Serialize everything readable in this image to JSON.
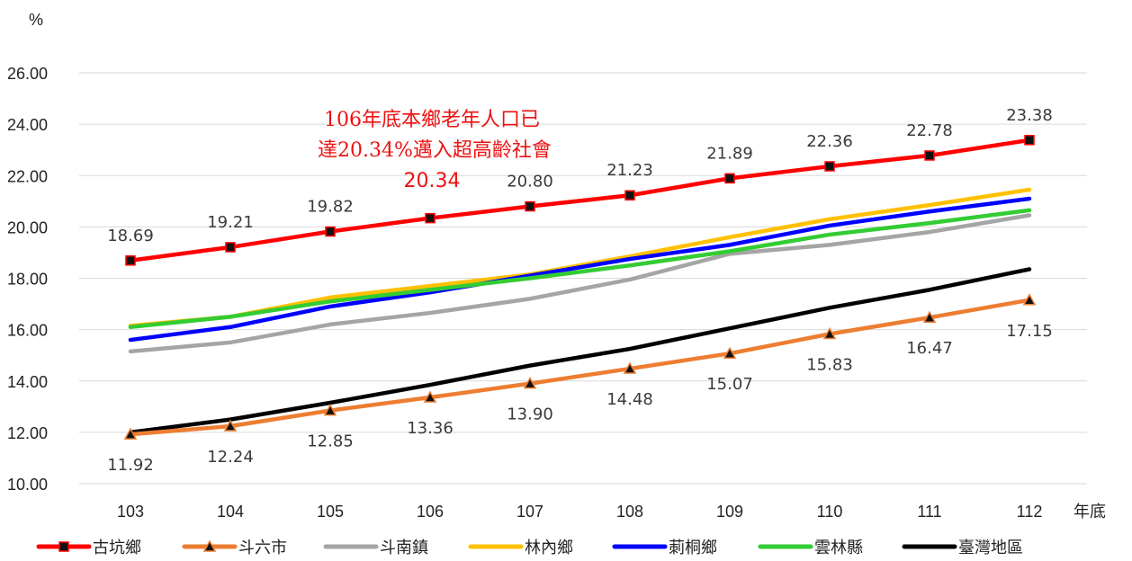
{
  "chart_data": {
    "type": "line",
    "y_unit": "%",
    "x_unit": "年底",
    "ylim": [
      10,
      26
    ],
    "y_ticks": [
      "10.00",
      "12.00",
      "14.00",
      "16.00",
      "18.00",
      "20.00",
      "22.00",
      "24.00",
      "26.00"
    ],
    "x": [
      "103",
      "104",
      "105",
      "106",
      "107",
      "108",
      "109",
      "110",
      "111",
      "112"
    ],
    "grid": true,
    "legend_position": "bottom",
    "annotation": {
      "lines": [
        "106年底本鄉老年人口已",
        "達20.34%邁入超高齡社會"
      ],
      "value": "20.34"
    },
    "series": [
      {
        "name": "古坑鄉",
        "color": "#ff0000",
        "marker": "square",
        "values": [
          18.69,
          19.21,
          19.82,
          20.34,
          20.8,
          21.23,
          21.89,
          22.36,
          22.78,
          23.38
        ],
        "labels": [
          "18.69",
          "19.21",
          "19.82",
          "",
          "20.80",
          "21.23",
          "21.89",
          "22.36",
          "22.78",
          "23.38"
        ]
      },
      {
        "name": "斗六市",
        "color": "#ed7d31",
        "marker": "triangle",
        "values": [
          11.92,
          12.24,
          12.85,
          13.36,
          13.9,
          14.48,
          15.07,
          15.83,
          16.47,
          17.15
        ],
        "labels": [
          "11.92",
          "12.24",
          "12.85",
          "13.36",
          "13.90",
          "14.48",
          "15.07",
          "15.83",
          "16.47",
          "17.15"
        ]
      },
      {
        "name": "斗南鎮",
        "color": "#a5a5a5",
        "marker": "none",
        "values": [
          15.15,
          15.5,
          16.2,
          16.65,
          17.2,
          17.95,
          18.95,
          19.3,
          19.8,
          20.45
        ]
      },
      {
        "name": "林內鄉",
        "color": "#ffc000",
        "marker": "none",
        "values": [
          16.15,
          16.5,
          17.25,
          17.7,
          18.15,
          18.85,
          19.6,
          20.3,
          20.85,
          21.45
        ]
      },
      {
        "name": "莿桐鄉",
        "color": "#0000ff",
        "marker": "none",
        "values": [
          15.6,
          16.1,
          16.9,
          17.45,
          18.1,
          18.75,
          19.3,
          20.05,
          20.6,
          21.1
        ]
      },
      {
        "name": "雲林縣",
        "color": "#33cc33",
        "marker": "none",
        "values": [
          16.1,
          16.5,
          17.1,
          17.55,
          18.0,
          18.5,
          19.05,
          19.7,
          20.15,
          20.65
        ]
      },
      {
        "name": "臺灣地區",
        "color": "#000000",
        "marker": "none",
        "values": [
          12.0,
          12.5,
          13.15,
          13.85,
          14.6,
          15.25,
          16.05,
          16.85,
          17.55,
          18.35
        ]
      }
    ]
  }
}
